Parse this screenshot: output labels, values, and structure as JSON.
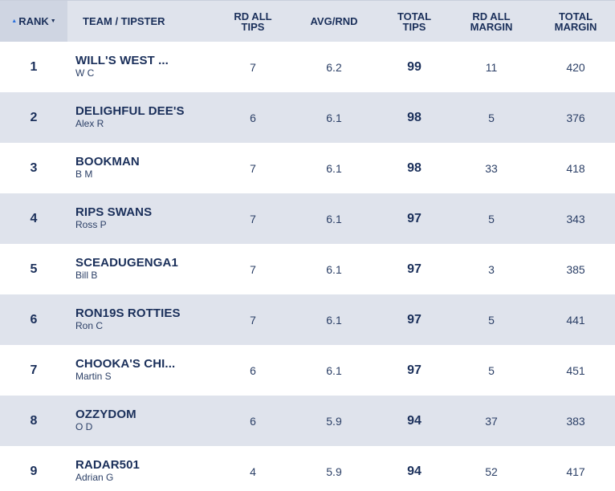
{
  "header": {
    "rank": "RANK",
    "team": "TEAM / TIPSTER",
    "rd_all_tips": "RD ALL\nTIPS",
    "avg_rnd": "AVG/RND",
    "total_tips": "TOTAL\nTIPS",
    "rd_all_margin": "RD ALL\nMARGIN",
    "total_margin": "TOTAL\nMARGIN"
  },
  "rows": [
    {
      "rank": "1",
      "team": "WILL'S WEST ...",
      "tipster": "W C",
      "rd_tips": "7",
      "avg": "6.2",
      "total": "99",
      "rd_margin": "11",
      "total_margin": "420"
    },
    {
      "rank": "2",
      "team": "DELIGHFUL DEE'S",
      "tipster": "Alex R",
      "rd_tips": "6",
      "avg": "6.1",
      "total": "98",
      "rd_margin": "5",
      "total_margin": "376"
    },
    {
      "rank": "3",
      "team": "BOOKMAN",
      "tipster": "B M",
      "rd_tips": "7",
      "avg": "6.1",
      "total": "98",
      "rd_margin": "33",
      "total_margin": "418"
    },
    {
      "rank": "4",
      "team": "RIPS SWANS",
      "tipster": "Ross P",
      "rd_tips": "7",
      "avg": "6.1",
      "total": "97",
      "rd_margin": "5",
      "total_margin": "343"
    },
    {
      "rank": "5",
      "team": "SCEADUGENGA1",
      "tipster": "Bill B",
      "rd_tips": "7",
      "avg": "6.1",
      "total": "97",
      "rd_margin": "3",
      "total_margin": "385"
    },
    {
      "rank": "6",
      "team": "RON19S ROTTIES",
      "tipster": "Ron C",
      "rd_tips": "7",
      "avg": "6.1",
      "total": "97",
      "rd_margin": "5",
      "total_margin": "441"
    },
    {
      "rank": "7",
      "team": "CHOOKA'S CHI...",
      "tipster": "Martin S",
      "rd_tips": "6",
      "avg": "6.1",
      "total": "97",
      "rd_margin": "5",
      "total_margin": "451"
    },
    {
      "rank": "8",
      "team": "OZZYDOM",
      "tipster": "O D",
      "rd_tips": "6",
      "avg": "5.9",
      "total": "94",
      "rd_margin": "37",
      "total_margin": "383"
    },
    {
      "rank": "9",
      "team": "RADAR501",
      "tipster": "Adrian G",
      "rd_tips": "4",
      "avg": "5.9",
      "total": "94",
      "rd_margin": "52",
      "total_margin": "417"
    }
  ],
  "colors": {
    "header_bg": "#dfe3ec",
    "alt_row_bg": "#dfe3ec",
    "text": "#1a2f5a",
    "sort_accent": "#2a6fdb"
  },
  "icons": {
    "sort_asc": "sort-up-icon",
    "sort_desc": "sort-down-icon"
  }
}
